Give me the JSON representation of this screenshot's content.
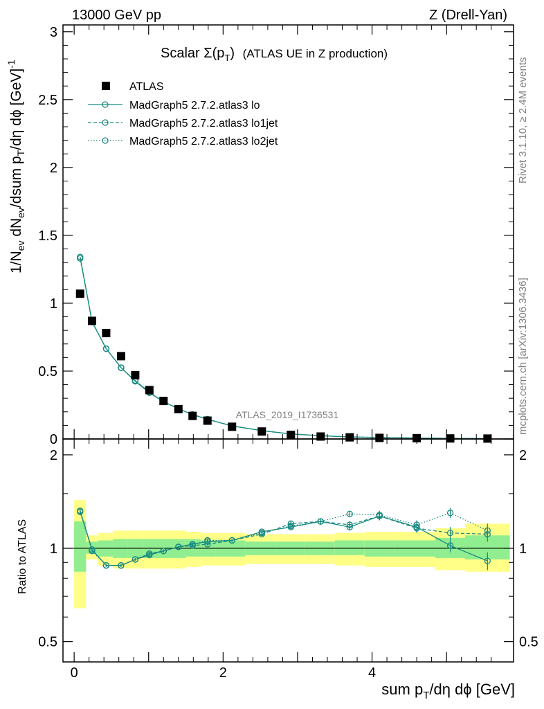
{
  "header": {
    "left": "13000 GeV pp",
    "right": "Z (Drell-Yan)"
  },
  "side_labels": {
    "rivet": "Rivet 3.1.10, ≥ 2.4M events",
    "mcplots": "mcplots.cern.ch [arXiv:1306.3436]"
  },
  "title": {
    "main": "Scalar Σ(p",
    "sub": "T",
    "close": ")",
    "tail": "(ATLAS UE in Z production)"
  },
  "watermark": "ATLAS_2019_I1736531",
  "axes": {
    "ylabel": "1/N_ev dN_ev/dsum p_T/dη dϕ [GeV]^-1",
    "ylabel_ratio": "Ratio to ATLAS",
    "xlabel": "sum p_T/dη dϕ [GeV]"
  },
  "legend": [
    {
      "label": "ATLAS",
      "style": "marker"
    },
    {
      "label": "MadGraph5 2.7.2.atlas3 lo",
      "style": "solid"
    },
    {
      "label": "MadGraph5 2.7.2.atlas3 lo1jet",
      "style": "dashed"
    },
    {
      "label": "MadGraph5 2.7.2.atlas3 lo2jet",
      "style": "dotted"
    }
  ],
  "colors": {
    "mc": "#1a8a80",
    "data": "#000000",
    "band_inner": "#90ee90",
    "band_outer": "#ffff88"
  },
  "chart_data": [
    {
      "type": "scatter",
      "panel": "main",
      "xlim": [
        -0.15,
        5.9
      ],
      "ylim": [
        0,
        3.05
      ],
      "xticks": [
        "0",
        "2",
        "4"
      ],
      "yticks": [
        "0",
        "0.5",
        "1",
        "1.5",
        "2",
        "2.5",
        "3"
      ],
      "x": [
        0.08,
        0.24,
        0.43,
        0.63,
        0.82,
        1.01,
        1.2,
        1.4,
        1.59,
        1.79,
        2.12,
        2.52,
        2.91,
        3.31,
        3.7,
        4.1,
        4.6,
        5.05,
        5.55
      ],
      "series": [
        {
          "name": "ATLAS",
          "values": [
            1.07,
            0.87,
            0.78,
            0.61,
            0.47,
            0.36,
            0.28,
            0.22,
            0.17,
            0.135,
            0.09,
            0.055,
            0.03,
            0.018,
            0.012,
            0.008,
            0.006,
            0.004,
            0.003
          ]
        },
        {
          "name": "MadGraph5 2.7.2.atlas3 lo",
          "values": [
            1.34,
            0.865,
            0.665,
            0.525,
            0.425,
            0.34,
            0.275,
            0.222,
            0.18,
            0.145,
            0.096,
            0.062,
            0.037,
            0.024,
            0.015,
            0.011,
            0.007,
            0.004,
            0.003
          ]
        },
        {
          "name": "MadGraph5 2.7.2.atlas3 lo1jet",
          "values": [
            1.34,
            0.865,
            0.665,
            0.525,
            0.43,
            0.345,
            0.275,
            0.222,
            0.18,
            0.146,
            0.096,
            0.061,
            0.037,
            0.024,
            0.015,
            0.011,
            0.007,
            0.005,
            0.003
          ]
        },
        {
          "name": "MadGraph5 2.7.2.atlas3 lo2jet",
          "values": [
            1.33,
            0.86,
            0.665,
            0.525,
            0.43,
            0.345,
            0.276,
            0.223,
            0.18,
            0.146,
            0.096,
            0.061,
            0.037,
            0.024,
            0.016,
            0.011,
            0.007,
            0.005,
            0.003
          ]
        }
      ]
    },
    {
      "type": "scatter",
      "panel": "ratio",
      "ylim": [
        0.43,
        2.25
      ],
      "yticks": [
        "0.5",
        "1",
        "2"
      ],
      "x": [
        0.08,
        0.24,
        0.43,
        0.63,
        0.82,
        1.01,
        1.2,
        1.4,
        1.59,
        1.79,
        2.12,
        2.52,
        2.91,
        3.31,
        3.7,
        4.1,
        4.6,
        5.05,
        5.55
      ],
      "bands": {
        "edges": [
          0,
          0.16,
          0.32,
          0.52,
          0.72,
          0.92,
          1.1,
          1.3,
          1.5,
          1.7,
          1.9,
          2.3,
          2.7,
          3.1,
          3.5,
          3.9,
          4.3,
          4.85,
          5.25,
          5.85
        ],
        "inner_lo": [
          0.84,
          0.96,
          0.94,
          0.93,
          0.93,
          0.93,
          0.93,
          0.93,
          0.94,
          0.94,
          0.94,
          0.95,
          0.95,
          0.95,
          0.95,
          0.94,
          0.94,
          0.93,
          0.92
        ],
        "inner_hi": [
          1.22,
          1.05,
          1.06,
          1.07,
          1.07,
          1.07,
          1.07,
          1.07,
          1.07,
          1.06,
          1.06,
          1.05,
          1.05,
          1.05,
          1.06,
          1.06,
          1.06,
          1.08,
          1.1
        ],
        "outer_lo": [
          0.64,
          0.92,
          0.88,
          0.86,
          0.86,
          0.86,
          0.86,
          0.86,
          0.87,
          0.88,
          0.88,
          0.89,
          0.89,
          0.89,
          0.88,
          0.87,
          0.87,
          0.85,
          0.84
        ],
        "outer_hi": [
          1.43,
          1.1,
          1.12,
          1.14,
          1.14,
          1.14,
          1.14,
          1.14,
          1.13,
          1.12,
          1.12,
          1.11,
          1.11,
          1.11,
          1.12,
          1.13,
          1.13,
          1.16,
          1.2
        ]
      },
      "series": [
        {
          "name": "MadGraph5 2.7.2.atlas3 lo",
          "values": [
            1.32,
            0.99,
            0.88,
            0.88,
            0.92,
            0.95,
            0.98,
            1.01,
            1.03,
            1.05,
            1.06,
            1.13,
            1.17,
            1.22,
            1.17,
            1.27,
            1.17,
            1.02,
            0.91
          ],
          "err": [
            0.02,
            0.01,
            0.01,
            0.01,
            0.01,
            0.01,
            0.01,
            0.01,
            0.01,
            0.01,
            0.01,
            0.01,
            0.02,
            0.02,
            0.03,
            0.04,
            0.04,
            0.05,
            0.06
          ]
        },
        {
          "name": "MadGraph5 2.7.2.atlas3 lo1jet",
          "values": [
            1.32,
            0.99,
            0.88,
            0.88,
            0.92,
            0.96,
            0.98,
            1.01,
            1.02,
            1.03,
            1.06,
            1.11,
            1.2,
            1.22,
            1.19,
            1.27,
            1.16,
            1.12,
            1.11
          ],
          "err": [
            0.02,
            0.01,
            0.01,
            0.01,
            0.01,
            0.01,
            0.01,
            0.01,
            0.01,
            0.01,
            0.01,
            0.01,
            0.02,
            0.02,
            0.03,
            0.04,
            0.04,
            0.05,
            0.06
          ]
        },
        {
          "name": "MadGraph5 2.7.2.atlas3 lo2jet",
          "values": [
            1.31,
            0.98,
            0.88,
            0.88,
            0.92,
            0.96,
            0.98,
            1.01,
            1.03,
            1.06,
            1.06,
            1.12,
            1.18,
            1.22,
            1.29,
            1.28,
            1.19,
            1.3,
            1.14
          ],
          "err": [
            0.02,
            0.01,
            0.01,
            0.01,
            0.01,
            0.01,
            0.01,
            0.01,
            0.01,
            0.01,
            0.01,
            0.01,
            0.02,
            0.02,
            0.03,
            0.04,
            0.04,
            0.05,
            0.06
          ]
        }
      ]
    }
  ]
}
